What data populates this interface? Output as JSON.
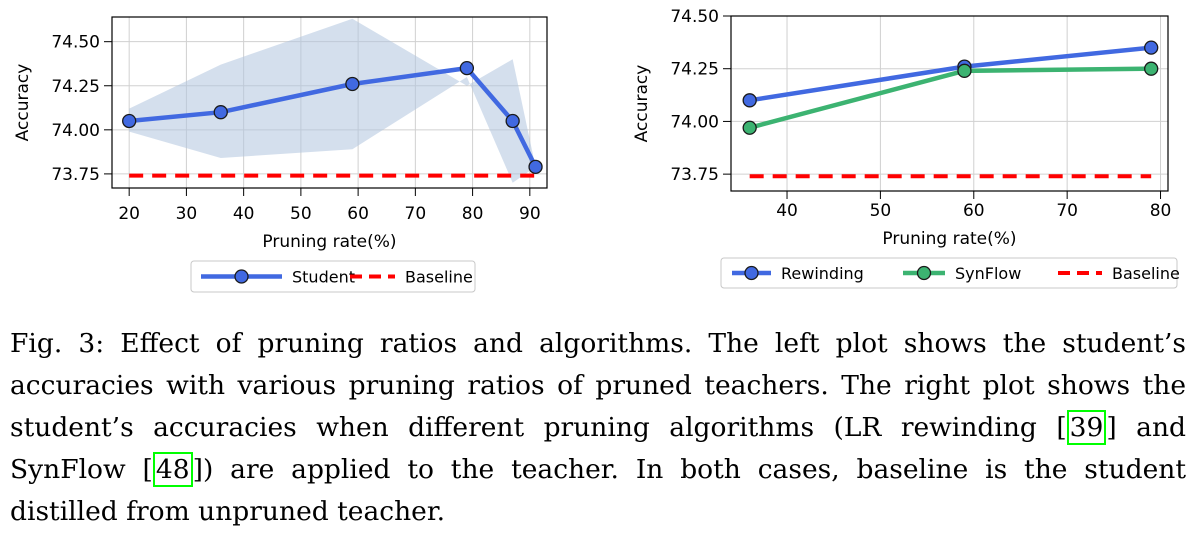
{
  "chart_data": [
    {
      "type": "line",
      "xlabel": "Pruning rate(%)",
      "ylabel": "Accuracy",
      "xlim": [
        17,
        93
      ],
      "ylim": [
        73.67,
        74.64
      ],
      "xticks": [
        20,
        30,
        40,
        50,
        60,
        70,
        80,
        90
      ],
      "yticks": [
        73.75,
        74.0,
        74.25,
        74.5
      ],
      "ytick_labels": [
        "73.75",
        "74.00",
        "74.25",
        "74.50"
      ],
      "grid": true,
      "legend_position": "below",
      "series": [
        {
          "name": "Student",
          "color": "#4169e1",
          "x": [
            20,
            36,
            59,
            79,
            87,
            91
          ],
          "y": [
            74.05,
            74.1,
            74.26,
            74.35,
            74.05,
            73.79
          ],
          "band_upper": [
            74.12,
            74.37,
            74.63,
            74.25,
            74.4,
            73.79
          ],
          "band_lower": [
            73.99,
            73.84,
            73.89,
            74.3,
            73.7,
            73.79
          ]
        },
        {
          "name": "Baseline",
          "color": "#ff0000",
          "style": "dashed",
          "x": [
            20,
            91
          ],
          "y": [
            73.74,
            73.74
          ]
        }
      ]
    },
    {
      "type": "line",
      "xlabel": "Pruning rate(%)",
      "ylabel": "Accuracy",
      "xlim": [
        34,
        80.8
      ],
      "ylim": [
        73.67,
        74.5
      ],
      "xticks": [
        40,
        50,
        60,
        70,
        80
      ],
      "yticks": [
        73.75,
        74.0,
        74.25,
        74.5
      ],
      "ytick_labels": [
        "73.75",
        "74.00",
        "74.25",
        "74.50"
      ],
      "grid": true,
      "legend_position": "below",
      "series": [
        {
          "name": "Rewinding",
          "color": "#4169e1",
          "x": [
            36,
            59,
            79
          ],
          "y": [
            74.1,
            74.26,
            74.35
          ]
        },
        {
          "name": "SynFlow",
          "color": "#3cb371",
          "x": [
            36,
            59,
            79
          ],
          "y": [
            73.97,
            74.24,
            74.25
          ]
        },
        {
          "name": "Baseline",
          "color": "#ff0000",
          "style": "dashed",
          "x": [
            36,
            79
          ],
          "y": [
            73.74,
            73.74
          ]
        }
      ]
    }
  ],
  "caption": {
    "prefix": "Fig. 3: Effect of pruning ratios and algorithms. The left plot shows the student’s accuracies with various pruning ratios of pruned teachers. The right plot shows the student’s accuracies when different pruning algorithms (LR rewinding ",
    "ref1": "39",
    "middle": "] and SynFlow [",
    "ref2": "48",
    "suffix": "]) are applied to the teacher. In both cases, baseline is the student distilled from unpruned teacher."
  }
}
